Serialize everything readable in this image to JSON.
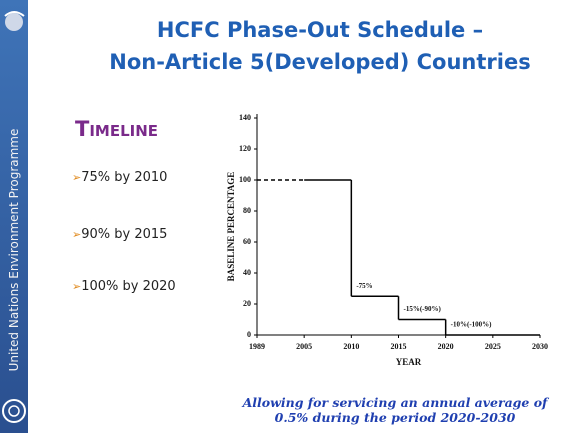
{
  "sidebar": {
    "organization": "United Nations Environment Programme"
  },
  "title_lines": [
    "HCFC Phase-Out Schedule –",
    "Non-Article 5(Developed) Countries"
  ],
  "timeline": {
    "heading": "Timeline",
    "items": [
      "75% by 2010",
      "90% by 2015",
      "100% by 2020"
    ]
  },
  "note_lines": [
    "Allowing for servicing an annual average of",
    "0.5% during the period 2020-2030"
  ],
  "chart_data": {
    "type": "step",
    "categories": [
      "1989",
      "2005",
      "2010",
      "2015",
      "2020",
      "2025",
      "2030"
    ],
    "values": [
      100,
      100,
      25,
      10,
      0,
      0,
      0
    ],
    "color": "#000000",
    "first_segment_dashed": true,
    "ylim": [
      0,
      140
    ],
    "yticks": [
      0,
      20,
      40,
      60,
      80,
      100,
      120,
      140
    ],
    "y_label": "BASELINE PERCENTAGE",
    "x_label": "YEAR",
    "annotations": [
      {
        "text": "-75%",
        "category": 2
      },
      {
        "text": "-15%(-90%)",
        "category": 3
      },
      {
        "text": "-10%(-100%)",
        "category": 4
      }
    ]
  }
}
